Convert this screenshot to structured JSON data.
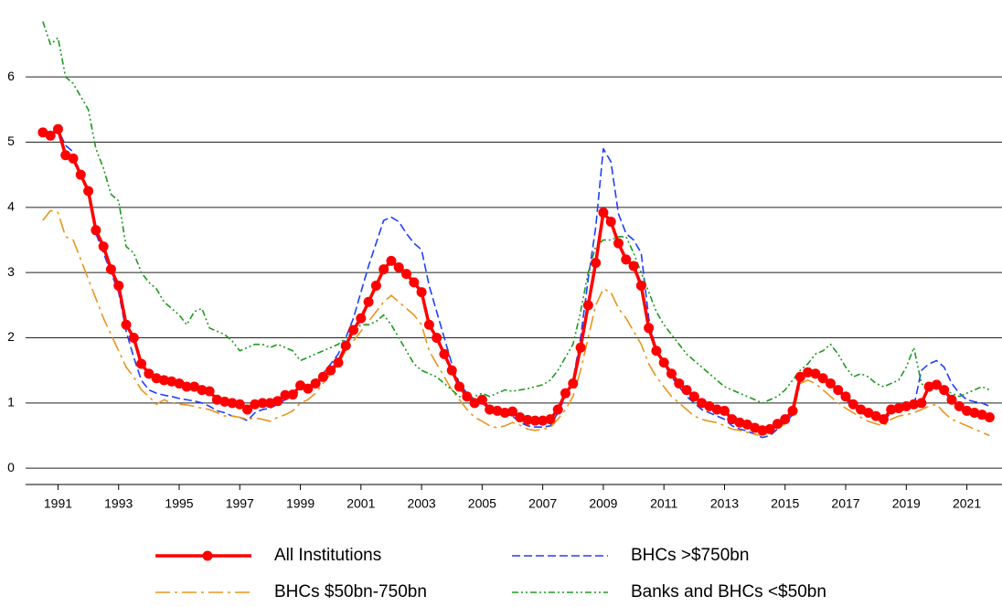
{
  "chart_data": {
    "type": "line",
    "x": [
      1991,
      1991.25,
      1991.5,
      1991.75,
      1992,
      1992.25,
      1992.5,
      1992.75,
      1993,
      1993.25,
      1993.5,
      1993.75,
      1994,
      1994.25,
      1994.5,
      1994.75,
      1995,
      1995.25,
      1995.5,
      1995.75,
      1996,
      1996.25,
      1996.5,
      1996.75,
      1997,
      1997.25,
      1997.5,
      1997.75,
      1998,
      1998.25,
      1998.5,
      1998.75,
      1999,
      1999.25,
      1999.5,
      1999.75,
      2000,
      2000.25,
      2000.5,
      2000.75,
      2001,
      2001.25,
      2001.5,
      2001.75,
      2002,
      2002.25,
      2002.5,
      2002.75,
      2003,
      2003.25,
      2003.5,
      2003.75,
      2004,
      2004.25,
      2004.5,
      2004.75,
      2005,
      2005.25,
      2005.5,
      2005.75,
      2006,
      2006.25,
      2006.5,
      2006.75,
      2007,
      2007.25,
      2007.5,
      2007.75,
      2008,
      2008.25,
      2008.5,
      2008.75,
      2009,
      2009.25,
      2009.5,
      2009.75,
      2010,
      2010.25,
      2010.5,
      2010.75,
      2011,
      2011.25,
      2011.5,
      2011.75,
      2012,
      2012.25,
      2012.5,
      2012.75,
      2013,
      2013.25,
      2013.5,
      2013.75,
      2014,
      2014.25,
      2014.5,
      2014.75,
      2015,
      2015.25,
      2015.5,
      2015.75,
      2016,
      2016.25,
      2016.5,
      2016.75,
      2017,
      2017.25,
      2017.5,
      2017.75,
      2018,
      2018.25,
      2018.5,
      2018.75,
      2019,
      2019.25,
      2019.5,
      2019.75,
      2020,
      2020.25,
      2020.5,
      2020.75,
      2021,
      2021.25,
      2021.5,
      2021.75,
      2022,
      2022.25
    ],
    "series": [
      {
        "name": "All Institutions",
        "color": "#ff0000",
        "linestyle": "solid",
        "marker": "circle",
        "values": [
          5.15,
          5.1,
          5.2,
          4.8,
          4.75,
          4.5,
          4.25,
          3.65,
          3.4,
          3.05,
          2.8,
          2.2,
          2.0,
          1.6,
          1.45,
          1.38,
          1.35,
          1.33,
          1.3,
          1.25,
          1.25,
          1.2,
          1.18,
          1.05,
          1.02,
          1.0,
          0.98,
          0.9,
          0.98,
          1.0,
          1.0,
          1.03,
          1.12,
          1.13,
          1.27,
          1.22,
          1.3,
          1.4,
          1.5,
          1.62,
          1.88,
          2.12,
          2.3,
          2.55,
          2.8,
          3.05,
          3.18,
          3.08,
          2.98,
          2.85,
          2.7,
          2.2,
          2.0,
          1.75,
          1.5,
          1.25,
          1.1,
          1.0,
          1.05,
          0.9,
          0.88,
          0.85,
          0.87,
          0.78,
          0.74,
          0.73,
          0.73,
          0.75,
          0.9,
          1.15,
          1.3,
          1.85,
          2.5,
          3.15,
          3.92,
          3.78,
          3.45,
          3.2,
          3.1,
          2.8,
          2.15,
          1.8,
          1.62,
          1.45,
          1.3,
          1.2,
          1.1,
          1.0,
          0.95,
          0.9,
          0.88,
          0.75,
          0.7,
          0.67,
          0.62,
          0.58,
          0.6,
          0.68,
          0.75,
          0.88,
          1.4,
          1.47,
          1.45,
          1.38,
          1.3,
          1.2,
          1.1,
          0.98,
          0.9,
          0.85,
          0.8,
          0.75,
          0.9,
          0.92,
          0.95,
          0.98,
          1.0,
          1.25,
          1.28,
          1.2,
          1.05,
          0.95,
          0.88,
          0.85,
          0.82,
          0.78
        ]
      },
      {
        "name": "BHCs >$750bn",
        "color": "#1f3fff",
        "linestyle": "dashed",
        "values": [
          5.1,
          5.1,
          5.2,
          4.95,
          4.85,
          4.5,
          4.2,
          3.6,
          3.3,
          3.0,
          2.7,
          2.1,
          1.7,
          1.35,
          1.2,
          1.15,
          1.12,
          1.1,
          1.07,
          1.05,
          1.03,
          1.0,
          0.95,
          0.88,
          0.85,
          0.8,
          0.78,
          0.73,
          0.85,
          0.9,
          0.92,
          0.98,
          1.05,
          1.1,
          1.2,
          1.25,
          1.35,
          1.45,
          1.6,
          1.75,
          2.0,
          2.3,
          2.7,
          3.1,
          3.45,
          3.8,
          3.85,
          3.78,
          3.6,
          3.45,
          3.35,
          2.8,
          2.4,
          2.0,
          1.6,
          1.3,
          1.15,
          1.05,
          1.0,
          0.9,
          0.85,
          0.82,
          0.8,
          0.7,
          0.65,
          0.63,
          0.63,
          0.65,
          0.85,
          1.1,
          1.35,
          2.0,
          2.9,
          3.7,
          4.9,
          4.7,
          3.9,
          3.6,
          3.5,
          3.3,
          2.3,
          1.8,
          1.6,
          1.4,
          1.25,
          1.1,
          1.0,
          0.9,
          0.85,
          0.8,
          0.75,
          0.65,
          0.6,
          0.57,
          0.52,
          0.47,
          0.5,
          0.6,
          0.7,
          0.82,
          1.35,
          1.45,
          1.43,
          1.35,
          1.28,
          1.18,
          1.05,
          0.95,
          0.85,
          0.8,
          0.75,
          0.72,
          0.85,
          0.88,
          0.9,
          0.95,
          1.5,
          1.6,
          1.65,
          1.55,
          1.3,
          1.15,
          1.05,
          1.02,
          1.0,
          0.95
        ]
      },
      {
        "name": "BHCs $50bn-750bn",
        "color": "#e8961e",
        "linestyle": "dashdot",
        "values": [
          3.8,
          3.95,
          3.92,
          3.55,
          3.5,
          3.2,
          2.9,
          2.6,
          2.3,
          2.05,
          1.8,
          1.55,
          1.4,
          1.2,
          1.1,
          0.98,
          1.05,
          1.0,
          0.98,
          0.97,
          0.95,
          0.92,
          0.9,
          0.85,
          0.8,
          0.8,
          0.78,
          0.75,
          0.77,
          0.75,
          0.72,
          0.78,
          0.82,
          0.88,
          1.0,
          1.05,
          1.15,
          1.3,
          1.45,
          1.6,
          1.8,
          1.95,
          2.1,
          2.25,
          2.4,
          2.55,
          2.65,
          2.55,
          2.45,
          2.35,
          2.2,
          1.8,
          1.6,
          1.4,
          1.2,
          1.05,
          0.9,
          0.78,
          0.72,
          0.65,
          0.62,
          0.65,
          0.7,
          0.66,
          0.6,
          0.58,
          0.6,
          0.62,
          0.75,
          0.9,
          1.1,
          1.5,
          2.0,
          2.5,
          2.75,
          2.7,
          2.45,
          2.3,
          2.1,
          1.9,
          1.6,
          1.4,
          1.25,
          1.1,
          1.0,
          0.9,
          0.8,
          0.75,
          0.72,
          0.7,
          0.65,
          0.6,
          0.58,
          0.55,
          0.52,
          0.5,
          0.55,
          0.6,
          0.68,
          0.8,
          1.3,
          1.35,
          1.3,
          1.2,
          1.1,
          1.0,
          0.92,
          0.85,
          0.78,
          0.72,
          0.68,
          0.65,
          0.75,
          0.8,
          0.82,
          0.85,
          0.9,
          0.95,
          0.98,
          0.85,
          0.75,
          0.7,
          0.65,
          0.6,
          0.55,
          0.5
        ]
      },
      {
        "name": "Banks and BHCs <$50bn",
        "color": "#1e9a1e",
        "linestyle": "dashdotdot",
        "values": [
          6.85,
          6.5,
          6.6,
          6.0,
          5.9,
          5.7,
          5.5,
          4.9,
          4.6,
          4.2,
          4.1,
          3.4,
          3.3,
          3.0,
          2.85,
          2.75,
          2.55,
          2.45,
          2.35,
          2.2,
          2.4,
          2.45,
          2.15,
          2.1,
          2.05,
          1.95,
          1.8,
          1.85,
          1.9,
          1.9,
          1.85,
          1.9,
          1.85,
          1.8,
          1.65,
          1.7,
          1.75,
          1.8,
          1.85,
          1.9,
          2.0,
          2.1,
          2.2,
          2.2,
          2.25,
          2.35,
          2.2,
          2.0,
          1.8,
          1.6,
          1.5,
          1.45,
          1.4,
          1.3,
          1.2,
          1.1,
          1.05,
          1.1,
          1.15,
          1.1,
          1.15,
          1.2,
          1.18,
          1.2,
          1.22,
          1.25,
          1.28,
          1.35,
          1.5,
          1.7,
          1.9,
          2.4,
          3.0,
          3.4,
          3.5,
          3.5,
          3.55,
          3.55,
          3.3,
          3.0,
          2.7,
          2.4,
          2.2,
          2.05,
          1.9,
          1.75,
          1.65,
          1.55,
          1.45,
          1.35,
          1.25,
          1.2,
          1.15,
          1.1,
          1.05,
          1.0,
          1.05,
          1.1,
          1.2,
          1.35,
          1.5,
          1.6,
          1.75,
          1.8,
          1.9,
          1.75,
          1.55,
          1.4,
          1.45,
          1.4,
          1.3,
          1.25,
          1.3,
          1.35,
          1.55,
          1.85,
          1.3,
          1.2,
          1.25,
          1.2,
          1.15,
          1.1,
          1.15,
          1.2,
          1.25,
          1.2
        ]
      }
    ],
    "xlim": [
      1990.43,
      2022.66
    ],
    "xticks": [
      {
        "value": 1991.5,
        "label": "1991"
      },
      {
        "value": 1993.5,
        "label": "1993"
      },
      {
        "value": 1995.5,
        "label": "1995"
      },
      {
        "value": 1997.5,
        "label": "1997"
      },
      {
        "value": 1999.5,
        "label": "1999"
      },
      {
        "value": 2001.5,
        "label": "2001"
      },
      {
        "value": 2003.5,
        "label": "2003"
      },
      {
        "value": 2005.5,
        "label": "2005"
      },
      {
        "value": 2007.5,
        "label": "2007"
      },
      {
        "value": 2009.5,
        "label": "2009"
      },
      {
        "value": 2011.5,
        "label": "2011"
      },
      {
        "value": 2013.5,
        "label": "2013"
      },
      {
        "value": 2015.5,
        "label": "2015"
      },
      {
        "value": 2017.5,
        "label": "2017"
      },
      {
        "value": 2019.5,
        "label": "2019"
      },
      {
        "value": 2021.5,
        "label": "2021"
      }
    ],
    "ylim": [
      -0.25,
      7.04
    ],
    "yticks": [
      0,
      1,
      2,
      3,
      4,
      5,
      6
    ],
    "grid": true,
    "legend": "bottom"
  }
}
